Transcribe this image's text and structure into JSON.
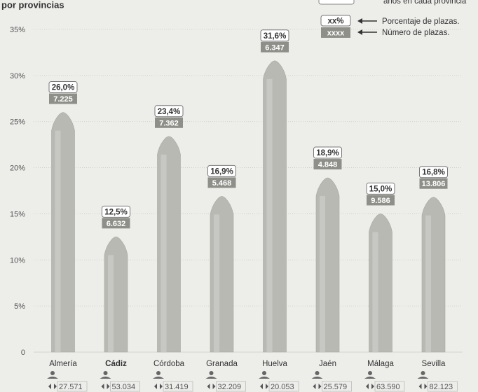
{
  "chart_data": {
    "type": "bar",
    "title_fragment": "por provincias",
    "categories": [
      "Almería",
      "Cádiz",
      "Córdoba",
      "Granada",
      "Huelva",
      "Jaén",
      "Málaga",
      "Sevilla"
    ],
    "highlight": "Cádiz",
    "series": [
      {
        "name": "Porcentaje de plazas.",
        "values": [
          26.0,
          12.5,
          23.4,
          16.9,
          31.6,
          18.9,
          15.0,
          16.8
        ],
        "labels": [
          "26,0%",
          "12,5%",
          "23,4%",
          "16,9%",
          "31,6%",
          "18,9%",
          "15,0%",
          "16,8%"
        ]
      },
      {
        "name": "Número de plazas.",
        "values": [
          7225,
          6632,
          7362,
          5468,
          6347,
          4848,
          9586,
          13806
        ],
        "labels": [
          "7.225",
          "6.632",
          "7.362",
          "5.468",
          "6.347",
          "4.848",
          "9.586",
          "13.806"
        ]
      }
    ],
    "population_labels": [
      "27.571",
      "53.034",
      "31.419",
      "32.209",
      "20.053",
      "25.579",
      "63.590",
      "82.123"
    ],
    "yticks": [
      "0",
      "5%",
      "10%",
      "15%",
      "20%",
      "25%",
      "30%",
      "35%"
    ],
    "ylim": [
      0,
      35
    ],
    "legend": {
      "partial_text": "años en cada provincia",
      "pct_box": "xx%",
      "num_box": "xxxx",
      "pct_label": "Porcentaje de plazas.",
      "num_label": "Número de plazas."
    },
    "colors": {
      "bar": "#b9b9b4",
      "bar_light": "#d4d4cf",
      "count_box": "#8f8f8a",
      "grid": "#c9c9c4"
    }
  }
}
